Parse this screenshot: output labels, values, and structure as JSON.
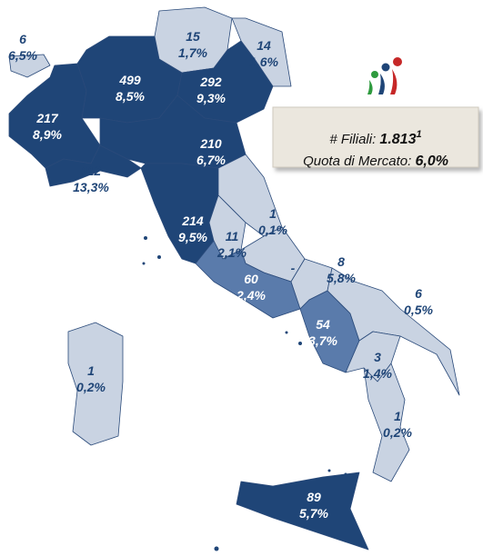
{
  "regions": [
    {
      "count": "6",
      "share": "6,5%",
      "color": "#c9d3e2"
    },
    {
      "count": "217",
      "share": "8,9%",
      "color": "#1f4577"
    },
    {
      "count": "499",
      "share": "8,5%",
      "color": "#1f4577"
    },
    {
      "count": "15",
      "share": "1,7%",
      "color": "#c9d3e2"
    },
    {
      "count": "292",
      "share": "9,3%",
      "color": "#1f4577"
    },
    {
      "count": "14",
      "share": "1,6%",
      "color": "#c9d3e2"
    },
    {
      "count": "112",
      "share": "13,3%",
      "color": "#1f4577"
    },
    {
      "count": "210",
      "share": "6,7%",
      "color": "#1f4577"
    },
    {
      "count": "214",
      "share": "9,5%",
      "color": "#1f4577"
    },
    {
      "count": "1",
      "share": "0,1%",
      "color": "#c9d3e2"
    },
    {
      "count": "11",
      "share": "2,1%",
      "color": "#c9d3e2"
    },
    {
      "count": "-",
      "color": "#c9d3e2"
    },
    {
      "count": "60",
      "share": "2,4%",
      "color": "#5a7bab"
    },
    {
      "count": "8",
      "share": "5,8%",
      "color": "#c9d3e2"
    },
    {
      "count": "54",
      "share": "3,7%",
      "color": "#5a7bab"
    },
    {
      "count": "6",
      "share": "0,5%",
      "color": "#c9d3e2"
    },
    {
      "count": "3",
      "share": "1,4%",
      "color": "#c9d3e2"
    },
    {
      "count": "1",
      "share": "0,2%",
      "color": "#c9d3e2"
    },
    {
      "count": "89",
      "share": "5,7%",
      "color": "#1f4577"
    },
    {
      "count": "1",
      "share": "0,2%",
      "color": "#c9d3e2"
    }
  ],
  "legend": {
    "branches_label": "# Filiali: ",
    "branches_value": "1.813",
    "footnote": "1",
    "share_label": "Quota di Mercato: ",
    "share_value": "6,0%"
  }
}
